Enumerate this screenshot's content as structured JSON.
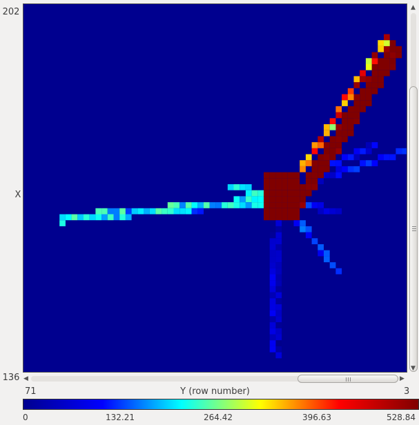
{
  "x_axis": {
    "max": "202",
    "label": "X",
    "min": "136"
  },
  "y_axis": {
    "max": "71",
    "label": "Y (row number)",
    "min": "3"
  },
  "colorbar": {
    "ticks": [
      "0",
      "132.21",
      "264.42",
      "396.63",
      "528.84"
    ],
    "colors": [
      "#00008f",
      "#0000ff",
      "#00ffff",
      "#ffff00",
      "#ff0000",
      "#800000"
    ]
  },
  "colors": {
    "background": "#00008f",
    "window": "#f2f1f0"
  },
  "chart_data": {
    "type": "heatmap",
    "xlabel": "Y (row number)",
    "ylabel": "X",
    "x_range": [
      71,
      3
    ],
    "y_range": [
      136,
      202
    ],
    "value_range": [
      0,
      528.84
    ],
    "colormap": "jet"
  }
}
